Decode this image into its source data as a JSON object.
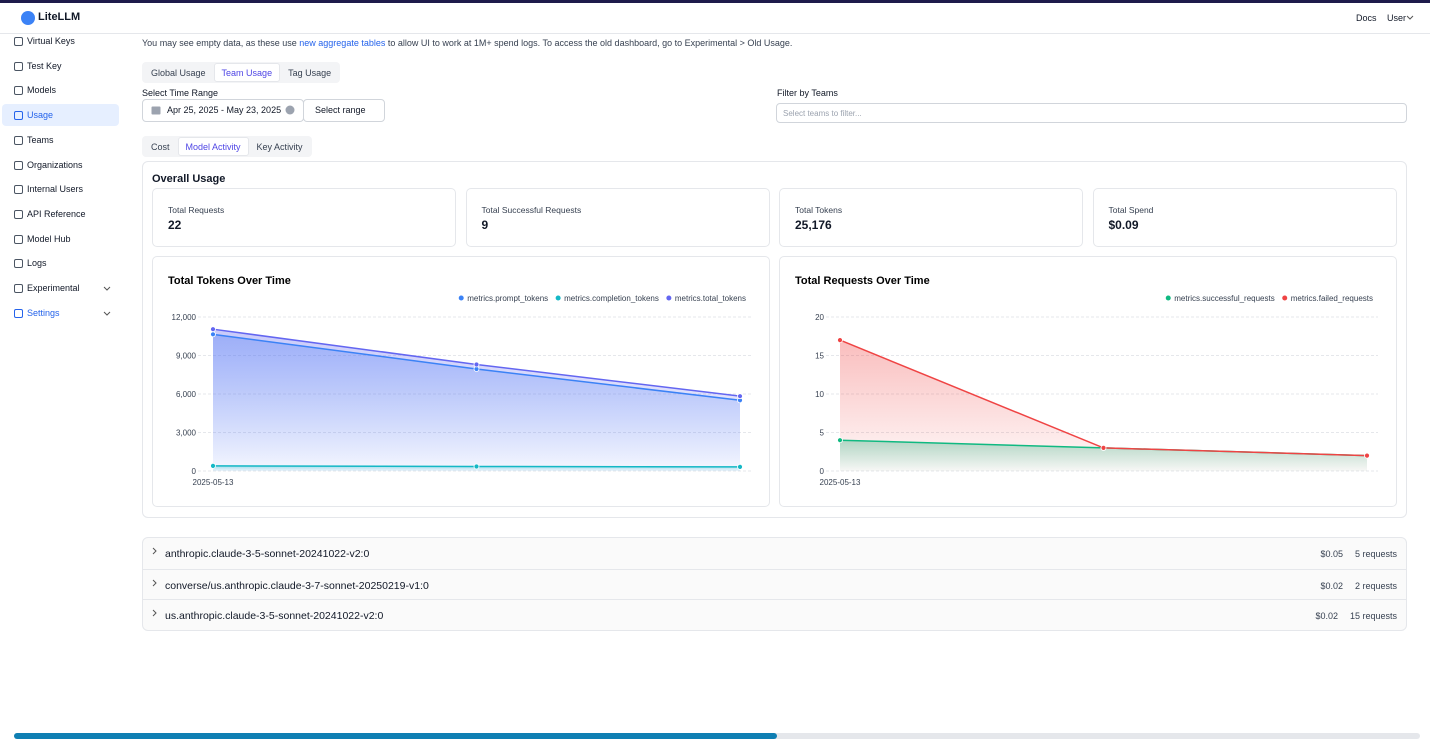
{
  "header": {
    "brand": "LiteLLM",
    "links": [
      "Docs",
      "User"
    ]
  },
  "sidebar": {
    "items": [
      "Virtual Keys",
      "Test Key",
      "Models",
      "Usage",
      "Teams",
      "Organizations",
      "Internal Users",
      "API Reference",
      "Model Hub",
      "Logs",
      "Experimental",
      "Settings"
    ],
    "active": "Usage"
  },
  "notice": {
    "before": "You may see empty data, as these use",
    "link": "new aggregate tables",
    "after": "to allow UI to work at 1M+ spend logs. To access the old dashboard, go to Experimental > Old Usage."
  },
  "tabs": {
    "items": [
      "Global Usage",
      "Team Usage",
      "Tag Usage"
    ],
    "active": "Team Usage"
  },
  "time_range": {
    "label": "Select Time Range",
    "value": "Apr 25, 2025 - May 23, 2025",
    "button": "Select range"
  },
  "team_filter": {
    "label": "Filter by Teams",
    "placeholder": "Select teams to filter..."
  },
  "subtabs": {
    "items": [
      "Cost",
      "Model Activity",
      "Key Activity"
    ],
    "active": "Model Activity"
  },
  "overall": {
    "title": "Overall Usage",
    "stats": [
      {
        "label": "Total Requests",
        "value": "22"
      },
      {
        "label": "Total Successful Requests",
        "value": "9"
      },
      {
        "label": "Total Tokens",
        "value": "25,176"
      },
      {
        "label": "Total Spend",
        "value": "$0.09"
      }
    ]
  },
  "chart_data": [
    {
      "type": "area",
      "title": "Total Tokens Over Time",
      "categories": [
        "2025-05-13",
        null,
        null
      ],
      "series": [
        {
          "name": "metrics.prompt_tokens",
          "color": "#3b82f6",
          "values": [
            10650,
            7950,
            5510
          ]
        },
        {
          "name": "metrics.completion_tokens",
          "color": "#14b8c6",
          "values": [
            400,
            350,
            320
          ]
        },
        {
          "name": "metrics.total_tokens",
          "color": "#6366f1",
          "values": [
            11050,
            8300,
            5830
          ]
        }
      ],
      "ylim": [
        0,
        12000
      ],
      "yticks": [
        0,
        {
          "value": 3000,
          "label": "3,000"
        },
        {
          "value": 6000,
          "label": "6,000"
        },
        {
          "value": 9000,
          "label": "9,000"
        },
        {
          "value": 12000,
          "label": "12,000"
        }
      ],
      "grid": true
    },
    {
      "type": "area",
      "title": "Total Requests Over Time",
      "categories": [
        "2025-05-13",
        null,
        null
      ],
      "series": [
        {
          "name": "metrics.successful_requests",
          "color": "#10b981",
          "values": [
            4,
            3,
            2
          ]
        },
        {
          "name": "metrics.failed_requests",
          "color": "#ef4444",
          "values": [
            17,
            3,
            2
          ]
        }
      ],
      "ylim": [
        0,
        20
      ],
      "yticks": [
        0,
        5,
        10,
        15,
        20
      ],
      "grid": true
    }
  ],
  "models": [
    {
      "name": "anthropic.claude-3-5-sonnet-20241022-v2:0",
      "spend": "$0.05",
      "requests": "5 requests"
    },
    {
      "name": "converse/us.anthropic.claude-3-7-sonnet-20250219-v1:0",
      "spend": "$0.02",
      "requests": "2 requests"
    },
    {
      "name": "us.anthropic.claude-3-5-sonnet-20241022-v2:0",
      "spend": "$0.02",
      "requests": "15 requests"
    }
  ]
}
